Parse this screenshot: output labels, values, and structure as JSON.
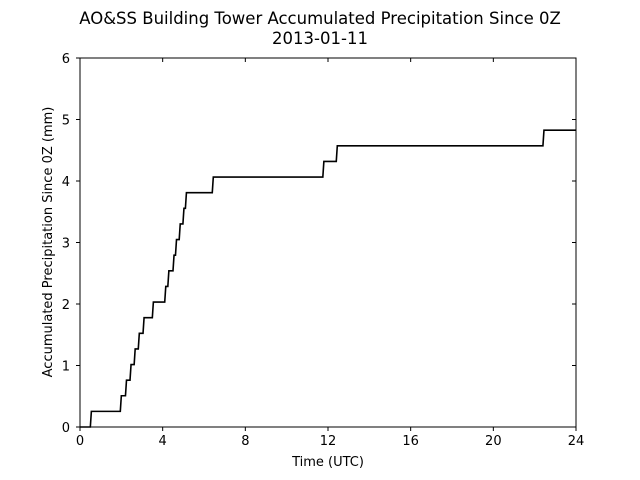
{
  "chart_data": {
    "type": "line",
    "title": "AO&SS Building Tower Accumulated Precipitation Since 0Z",
    "subtitle": "2013-01-11",
    "xlabel": "Time (UTC)",
    "ylabel": "Accumulated Precipitation Since 0Z (mm)",
    "xlim": [
      0,
      24
    ],
    "ylim": [
      0,
      6
    ],
    "xticks": [
      0,
      4,
      8,
      12,
      16,
      20,
      24
    ],
    "yticks": [
      0,
      1,
      2,
      3,
      4,
      5,
      6
    ],
    "grid": false,
    "line_color": "#000000",
    "step_points": [
      [
        0.5,
        0
      ],
      [
        0.55,
        0.254
      ],
      [
        1.95,
        0.254
      ],
      [
        2.0,
        0.508
      ],
      [
        2.2,
        0.508
      ],
      [
        2.25,
        0.762
      ],
      [
        2.42,
        0.762
      ],
      [
        2.47,
        1.016
      ],
      [
        2.62,
        1.016
      ],
      [
        2.67,
        1.27
      ],
      [
        2.82,
        1.27
      ],
      [
        2.87,
        1.524
      ],
      [
        3.05,
        1.524
      ],
      [
        3.1,
        1.778
      ],
      [
        3.5,
        1.778
      ],
      [
        3.55,
        2.032
      ],
      [
        4.1,
        2.032
      ],
      [
        4.15,
        2.286
      ],
      [
        4.25,
        2.286
      ],
      [
        4.3,
        2.54
      ],
      [
        4.5,
        2.54
      ],
      [
        4.55,
        2.794
      ],
      [
        4.62,
        2.794
      ],
      [
        4.67,
        3.048
      ],
      [
        4.8,
        3.048
      ],
      [
        4.85,
        3.302
      ],
      [
        4.98,
        3.302
      ],
      [
        5.03,
        3.556
      ],
      [
        5.1,
        3.556
      ],
      [
        5.15,
        3.81
      ],
      [
        6.4,
        3.81
      ],
      [
        6.45,
        4.064
      ],
      [
        11.75,
        4.064
      ],
      [
        11.8,
        4.318
      ],
      [
        12.4,
        4.318
      ],
      [
        12.45,
        4.572
      ],
      [
        22.4,
        4.572
      ],
      [
        22.45,
        4.826
      ],
      [
        24.0,
        4.826
      ]
    ],
    "start_point": [
      0.0,
      0
    ]
  }
}
